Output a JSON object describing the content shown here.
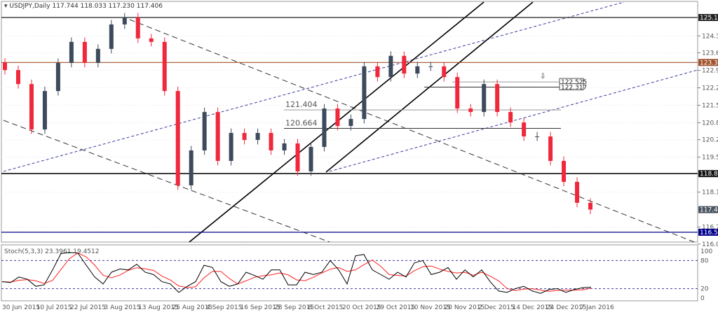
{
  "header": {
    "symbol": "USDJPY,Daily",
    "ohlc": "117.744 118.033 117.230 117.406"
  },
  "stoch_header": "Stoch(5,3,3) 23.3961 19.4512",
  "colors": {
    "bull": "#3d4a5c",
    "bear": "#f0283c",
    "brown_level": "#a0522d",
    "blue_level": "#00008b",
    "stoch_main": "#000000",
    "stoch_signal": "#ff2020",
    "channel": "#3a3aa0"
  },
  "chart_data": {
    "type": "candlestick",
    "title": "USDJPY,Daily",
    "closes": [
      123.0,
      122.44,
      120.62,
      122.16,
      123.29,
      124.13,
      123.29,
      123.85,
      124.83,
      125.11,
      124.27,
      124.13,
      122.16,
      118.38,
      119.78,
      121.32,
      119.36,
      120.48,
      120.2,
      120.48,
      119.78,
      120.06,
      118.94,
      119.92,
      121.46,
      120.76,
      121.04,
      123.15,
      122.72,
      123.57,
      122.86,
      123.15,
      123.15,
      122.72,
      121.46,
      121.32,
      122.44,
      121.32,
      120.9,
      120.34,
      120.34,
      119.36,
      118.52,
      117.68,
      117.41
    ],
    "ylim": [
      116.03,
      125.6
    ],
    "price_axis": [
      "124.370",
      "123.690",
      "122.990",
      "122.290",
      "121.590",
      "120.890",
      "120.210",
      "119.510",
      "118.110",
      "116.710",
      "116.030"
    ],
    "levels": [
      {
        "price": 125.108,
        "label": "125.108",
        "color": "#222222"
      },
      {
        "price": 123.305,
        "label": "123.305",
        "color": "#a0522d"
      },
      {
        "price": 118.85,
        "label": "118.850",
        "color": "#111111"
      },
      {
        "price": 117.406,
        "label": "117.406",
        "color": "#4a5560"
      },
      {
        "price": 116.5,
        "label": "116.500",
        "color": "#00008b"
      }
    ],
    "marked_levels": [
      {
        "price": 122.525,
        "label": "122.525"
      },
      {
        "price": 122.317,
        "label": "122.317"
      },
      {
        "price": 121.404,
        "label": "121.404"
      },
      {
        "price": 120.664,
        "label": "120.664"
      }
    ],
    "dates": [
      "30 Jun 2015",
      "10 Jul 2015",
      "22 Jul 2015",
      "3 Aug 2015",
      "13 Aug 2015",
      "25 Aug 2015",
      "4 Sep 2015",
      "16 Sep 2015",
      "28 Sep 2015",
      "8 Oct 2015",
      "20 Oct 2015",
      "29 Oct 2015",
      "10 Nov 2015",
      "20 Nov 2015",
      "2 Dec 2015",
      "14 Dec 2015",
      "24 Dec 2015",
      "7 Jan 2016"
    ],
    "stochastic": {
      "axis": [
        "100",
        "80",
        "20",
        "0"
      ],
      "k": [
        35,
        33,
        45,
        40,
        25,
        28,
        60,
        95,
        97,
        96,
        70,
        45,
        30,
        55,
        62,
        60,
        72,
        55,
        50,
        35,
        30,
        12,
        25,
        35,
        70,
        65,
        35,
        25,
        30,
        55,
        48,
        40,
        60,
        60,
        28,
        28,
        55,
        50,
        55,
        80,
        60,
        30,
        90,
        93,
        60,
        50,
        40,
        55,
        45,
        75,
        80,
        50,
        55,
        65,
        40,
        60,
        45,
        60,
        35,
        15,
        12,
        20,
        25,
        15,
        10,
        18,
        20,
        12,
        18,
        22,
        23
      ]
    }
  }
}
